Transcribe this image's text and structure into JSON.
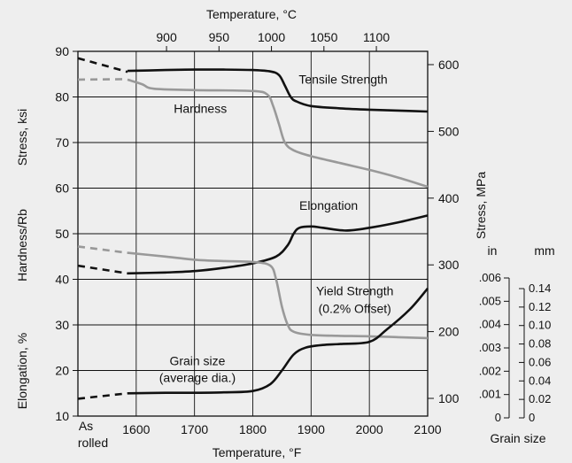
{
  "chart_data": {
    "type": "line",
    "grid": true,
    "x_bottom": {
      "label": "Temperature, °F",
      "ticks": [
        1600,
        1700,
        1800,
        1900,
        2000,
        2100
      ],
      "range": [
        1500,
        2100
      ],
      "extra_label": [
        "As",
        "rolled"
      ]
    },
    "x_top": {
      "label": "Temperature, °C",
      "ticks": [
        900,
        950,
        1000,
        1050,
        1100
      ]
    },
    "y_left": {
      "range": [
        10,
        90
      ],
      "ticks": [
        10,
        20,
        30,
        40,
        50,
        60,
        70,
        80,
        90
      ],
      "labels": [
        "Stress, ksi",
        "Hardness/Rb",
        "Elongation, %"
      ]
    },
    "y_right": {
      "label": "Stress, MPa",
      "ticks": [
        100,
        200,
        300,
        400,
        500,
        600
      ]
    },
    "grain_scale": {
      "label": "Grain size",
      "in_label": "in",
      "mm_label": "mm",
      "in_ticks": [
        "0",
        ".001",
        ".002",
        ".003",
        ".004",
        ".005",
        ".006"
      ],
      "mm_ticks": [
        "0",
        "0.02",
        "0.04",
        "0.06",
        "0.08",
        "0.10",
        "0.12",
        "0.14"
      ]
    },
    "series": [
      {
        "name": "Tensile Strength",
        "color": "#111111",
        "dashed_x": [
          1500,
          1585
        ],
        "dashed_y": [
          88.5,
          85.5
        ],
        "x": [
          1585,
          1650,
          1700,
          1750,
          1800,
          1830,
          1845,
          1855,
          1865,
          1875,
          1900,
          1950,
          2000,
          2050,
          2100
        ],
        "y": [
          85.7,
          85.9,
          86.0,
          86.0,
          85.9,
          85.6,
          84.8,
          82.5,
          80.0,
          79.0,
          78.0,
          77.5,
          77.2,
          77.0,
          76.8
        ]
      },
      {
        "name": "Hardness",
        "color": "#999999",
        "dashed_x": [
          1500,
          1585
        ],
        "dashed_y": [
          83.8,
          83.9
        ],
        "x": [
          1585,
          1610,
          1630,
          1700,
          1800,
          1825,
          1835,
          1845,
          1855,
          1870,
          1900,
          1950,
          2000,
          2050,
          2100
        ],
        "y": [
          83.8,
          82.8,
          81.8,
          81.5,
          81.3,
          80.5,
          78.0,
          74.0,
          70.0,
          68.3,
          67.0,
          65.5,
          64.0,
          62.3,
          60.3
        ]
      },
      {
        "name": "Elongation",
        "color": "#111111",
        "dashed_x": [
          1500,
          1585
        ],
        "dashed_y": [
          43.0,
          41.3
        ],
        "x": [
          1585,
          1650,
          1700,
          1750,
          1800,
          1840,
          1860,
          1870,
          1880,
          1900,
          1920,
          1960,
          2000,
          2050,
          2100
        ],
        "y": [
          41.3,
          41.5,
          41.8,
          42.5,
          43.5,
          45.0,
          47.5,
          50.0,
          51.3,
          51.6,
          51.3,
          50.7,
          51.3,
          52.5,
          54.0
        ]
      },
      {
        "name": "Yield Strength (0.2% Offset)",
        "color": "#999999",
        "dashed_x": [
          1500,
          1585
        ],
        "dashed_y": [
          47.2,
          45.8
        ],
        "x": [
          1585,
          1650,
          1700,
          1750,
          1800,
          1830,
          1840,
          1850,
          1860,
          1870,
          1900,
          1950,
          2000,
          2050,
          2100
        ],
        "y": [
          45.8,
          45.0,
          44.3,
          44.0,
          43.8,
          43.0,
          40.0,
          34.0,
          30.0,
          28.5,
          27.8,
          27.6,
          27.5,
          27.3,
          27.1
        ]
      },
      {
        "name": "Grain size (average dia.)",
        "color": "#111111",
        "dashed_x": [
          1500,
          1585
        ],
        "dashed_y": [
          13.8,
          15.0
        ],
        "x": [
          1585,
          1650,
          1700,
          1750,
          1800,
          1830,
          1850,
          1870,
          1890,
          1920,
          1950,
          2000,
          2030,
          2070,
          2100
        ],
        "y": [
          15.0,
          15.1,
          15.1,
          15.2,
          15.5,
          17.0,
          20.0,
          23.5,
          25.0,
          25.6,
          25.8,
          26.3,
          29.0,
          33.5,
          38.0
        ]
      }
    ],
    "annotations": [
      {
        "text": "Tensile Strength",
        "x": 1955,
        "y": 82.9
      },
      {
        "text": "Hardness",
        "x": 1710,
        "y": 76.5
      },
      {
        "text": "Elongation",
        "x": 1930,
        "y": 55.2
      },
      {
        "text": "Yield Strength",
        "x": 1975,
        "y": 36.5
      },
      {
        "text": "(0.2% Offset)",
        "x": 1975,
        "y": 32.6
      },
      {
        "text": "Grain size",
        "x": 1705,
        "y": 21.2
      },
      {
        "text": "(average dia.)",
        "x": 1705,
        "y": 17.5
      }
    ]
  }
}
